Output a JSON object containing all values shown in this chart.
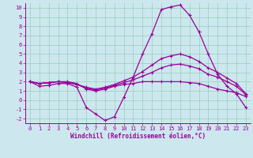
{
  "xlabel": "Windchill (Refroidissement éolien,°C)",
  "bg_color": "#cce8ee",
  "grid_color": "#99ccbb",
  "line_color": "#990099",
  "x_data": [
    0,
    1,
    2,
    3,
    4,
    5,
    6,
    7,
    8,
    9,
    10,
    11,
    12,
    13,
    14,
    15,
    16,
    17,
    18,
    19,
    20,
    21,
    22,
    23
  ],
  "series": [
    [
      2.0,
      1.8,
      1.9,
      2.0,
      2.0,
      1.8,
      1.2,
      1.0,
      1.2,
      1.5,
      1.7,
      1.8,
      2.0,
      2.0,
      2.0,
      2.0,
      2.0,
      1.9,
      1.8,
      1.5,
      1.2,
      1.0,
      0.8,
      0.4
    ],
    [
      2.0,
      1.8,
      1.9,
      2.0,
      1.9,
      1.7,
      1.3,
      1.1,
      1.3,
      1.6,
      1.9,
      2.2,
      2.6,
      3.0,
      3.5,
      3.8,
      3.9,
      3.7,
      3.4,
      2.8,
      2.5,
      2.0,
      1.5,
      0.6
    ],
    [
      2.0,
      1.8,
      1.9,
      2.0,
      1.9,
      1.7,
      1.4,
      1.2,
      1.4,
      1.7,
      2.1,
      2.5,
      3.1,
      3.8,
      4.5,
      4.8,
      5.0,
      4.7,
      4.2,
      3.5,
      3.0,
      2.4,
      1.8,
      0.7
    ],
    [
      2.0,
      1.5,
      1.6,
      1.8,
      1.8,
      1.4,
      -0.8,
      -1.5,
      -2.2,
      -1.8,
      0.3,
      2.5,
      5.0,
      7.2,
      9.8,
      10.1,
      10.3,
      9.2,
      7.4,
      5.0,
      2.8,
      1.5,
      0.7,
      -0.8
    ]
  ],
  "ylim": [
    -2.5,
    10.5
  ],
  "xlim": [
    -0.5,
    23.5
  ],
  "yticks": [
    -2,
    -1,
    0,
    1,
    2,
    3,
    4,
    5,
    6,
    7,
    8,
    9,
    10
  ],
  "xticks": [
    0,
    1,
    2,
    3,
    4,
    5,
    6,
    7,
    8,
    9,
    10,
    11,
    12,
    13,
    14,
    15,
    16,
    17,
    18,
    19,
    20,
    21,
    22,
    23
  ],
  "xlabel_fontsize": 5.5,
  "tick_fontsize": 5.0,
  "linewidth": 0.9,
  "markersize": 2.5
}
